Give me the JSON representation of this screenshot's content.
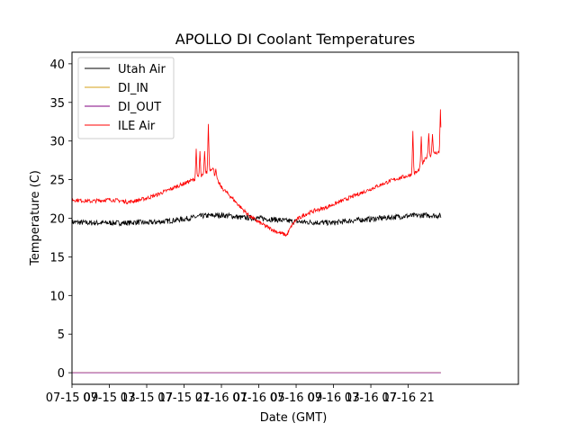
{
  "chart_data": {
    "type": "line",
    "title": "APOLLO DI Coolant Temperatures",
    "xlabel": "Date (GMT)",
    "ylabel": "Temperature (C)",
    "xlim": [
      0,
      47.8
    ],
    "ylim": [
      -1.5,
      41.5
    ],
    "y_ticks": [
      0,
      5,
      10,
      15,
      20,
      25,
      30,
      35,
      40
    ],
    "x_ticks": [
      {
        "x": 0,
        "label": "07-15 09"
      },
      {
        "x": 4,
        "label": "07-15 13"
      },
      {
        "x": 8,
        "label": "07-15 17"
      },
      {
        "x": 12,
        "label": "07-15 21"
      },
      {
        "x": 16,
        "label": "07-16 01"
      },
      {
        "x": 20,
        "label": "07-16 05"
      },
      {
        "x": 24,
        "label": "07-16 09"
      },
      {
        "x": 28,
        "label": "07-16 13"
      },
      {
        "x": 32,
        "label": "07-16 17"
      },
      {
        "x": 36,
        "label": "07-16 21"
      }
    ],
    "x_units": "hours since 07-15 09:00 GMT",
    "legend_position": "upper-left",
    "series": [
      {
        "name": "Utah Air",
        "color": "#000000",
        "x": [
          0,
          2,
          4,
          6,
          7,
          8,
          10,
          12,
          14,
          16,
          17,
          18,
          20,
          22,
          23.5,
          25,
          28,
          30,
          32,
          34,
          36,
          38,
          39.5
        ],
        "y": [
          19.5,
          19.4,
          19.4,
          19.4,
          19.5,
          19.4,
          19.6,
          19.9,
          20.3,
          20.4,
          20.3,
          20.1,
          20.0,
          19.8,
          19.6,
          19.5,
          19.4,
          19.7,
          19.9,
          20.1,
          20.3,
          20.4,
          20.3
        ]
      },
      {
        "name": "DI_IN",
        "color": "#d4a017",
        "x": [
          0,
          39.5
        ],
        "y": [
          0,
          0
        ]
      },
      {
        "name": "DI_OUT",
        "color": "#800080",
        "x": [
          0,
          39.5
        ],
        "y": [
          0,
          0
        ]
      },
      {
        "name": "ILE Air",
        "color": "#ff0000",
        "x": [
          0,
          1,
          2,
          3,
          4,
          5,
          6,
          7,
          8,
          9,
          10,
          11,
          12,
          13,
          14,
          15,
          15.5,
          16,
          17,
          18,
          19,
          20,
          21,
          22,
          23,
          23.5,
          24,
          25,
          26,
          27,
          28,
          29,
          30,
          31,
          32,
          33,
          34,
          35,
          36,
          37,
          38,
          39,
          39.5
        ],
        "y": [
          22.4,
          22.3,
          22.2,
          22.3,
          22.4,
          22.3,
          22.1,
          22.3,
          22.6,
          23.0,
          23.5,
          24.0,
          24.5,
          25.0,
          25.5,
          26.5,
          25.0,
          24.0,
          22.8,
          21.5,
          20.3,
          19.5,
          18.8,
          18.2,
          17.8,
          19.0,
          19.8,
          20.5,
          21.0,
          21.3,
          21.8,
          22.3,
          22.8,
          23.3,
          23.8,
          24.3,
          24.8,
          25.2,
          25.5,
          26.0,
          28.0,
          28.5,
          28.5
        ]
      }
    ],
    "spikes": [
      {
        "x": 13.3,
        "y": 29.0
      },
      {
        "x": 13.7,
        "y": 28.7
      },
      {
        "x": 14.2,
        "y": 28.7
      },
      {
        "x": 14.6,
        "y": 32.2
      },
      {
        "x": 15.1,
        "y": 26.5
      },
      {
        "x": 15.4,
        "y": 26.4
      },
      {
        "x": 36.5,
        "y": 31.3
      },
      {
        "x": 37.4,
        "y": 30.6
      },
      {
        "x": 38.2,
        "y": 31.0
      },
      {
        "x": 38.6,
        "y": 30.9
      },
      {
        "x": 39.45,
        "y": 34.1
      }
    ]
  }
}
